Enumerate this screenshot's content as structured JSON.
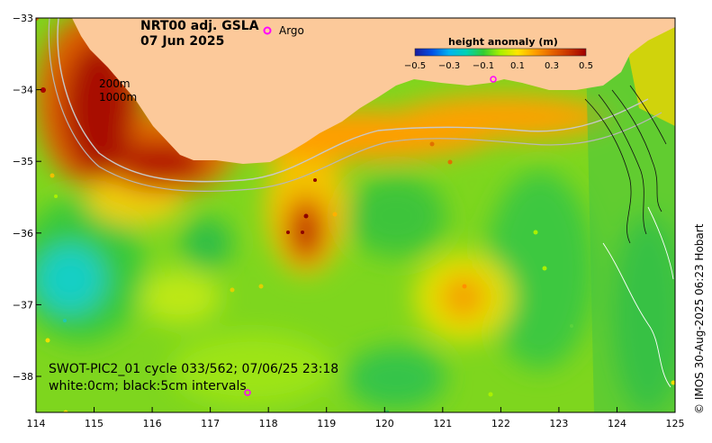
{
  "map": {
    "title": "NRT00 adj. GSLA",
    "date": "07 Jun 2025",
    "isobath_shallow": "200m",
    "isobath_deep": "1000m",
    "argo_label": "Argo",
    "argo_color": "#ff00ff",
    "land_color": "#fcc99a"
  },
  "axes": {
    "x_ticks": [
      "114",
      "115",
      "116",
      "117",
      "118",
      "119",
      "120",
      "121",
      "122",
      "123",
      "124",
      "125"
    ],
    "y_ticks": [
      "−33",
      "−34",
      "−35",
      "−36",
      "−37",
      "−38"
    ],
    "lon_range": [
      114,
      125
    ],
    "lat_range": [
      -38.5,
      -33
    ]
  },
  "colorbar": {
    "title": "height anomaly (m)",
    "ticks": [
      "−0.5",
      "−0.3",
      "−0.1",
      "0.1",
      "0.3",
      "0.5"
    ],
    "range": [
      -0.5,
      0.5
    ],
    "colors": [
      "#1a1a9c",
      "#0050e6",
      "#00b4f0",
      "#00d2b4",
      "#32cd32",
      "#aaf000",
      "#ffe600",
      "#ffa000",
      "#e66400",
      "#c83200",
      "#a00000"
    ]
  },
  "info": {
    "swot_line": "SWOT-PIC2_01 cycle 033/562; 07/06/25 23:18",
    "contour_line": "white:0cm; black:5cm intervals"
  },
  "credit": "© IMOS 30-Aug-2025 06:23 Hobart"
}
